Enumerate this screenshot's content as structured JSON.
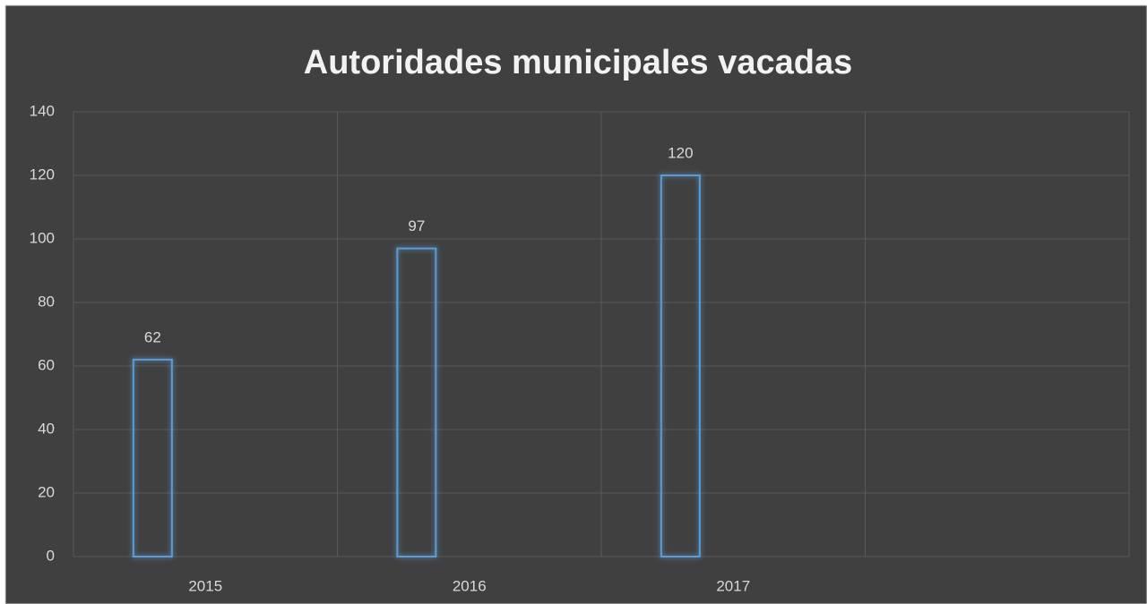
{
  "chart_data": {
    "type": "bar",
    "title": "Autoridades  municipales vacadas",
    "categories": [
      "2015",
      "2016",
      "2017",
      null
    ],
    "values": [
      62,
      97,
      120,
      null
    ],
    "color": "#5b9bd5",
    "ylim": [
      0,
      140
    ],
    "yticks": [
      0,
      20,
      40,
      60,
      80,
      100,
      120,
      140
    ],
    "grid": true
  }
}
